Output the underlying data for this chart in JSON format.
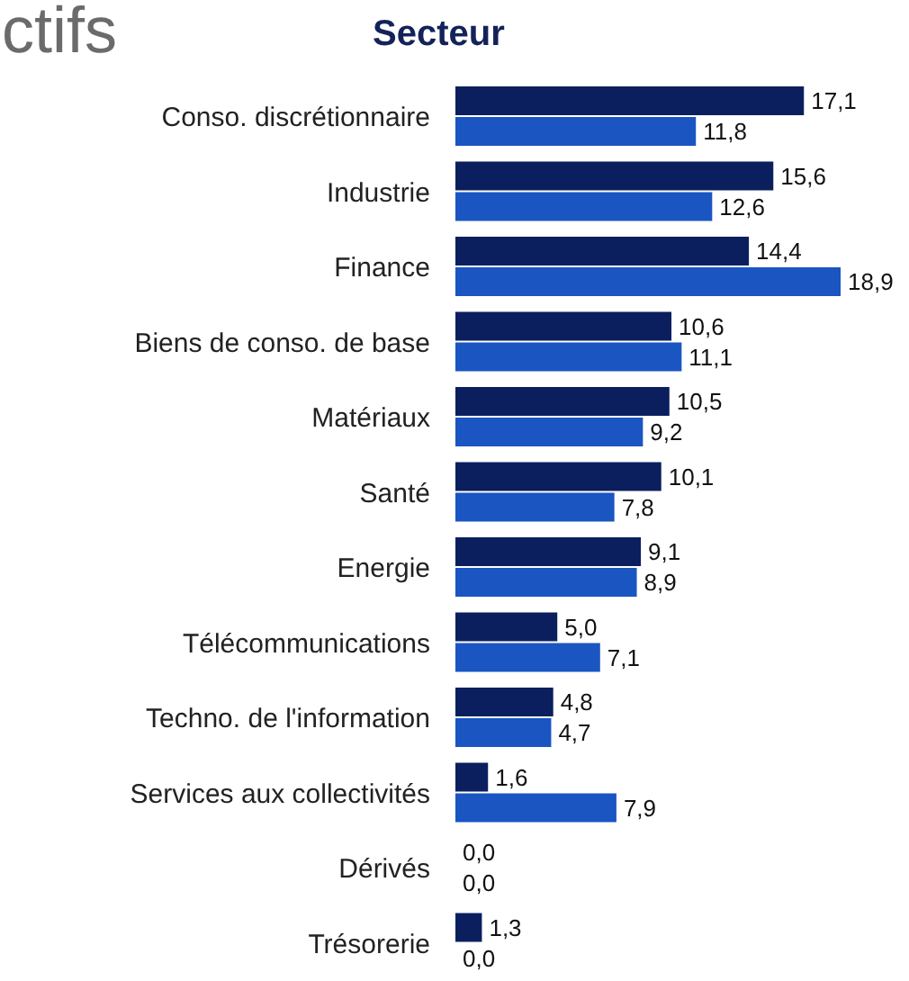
{
  "chart_data": {
    "type": "bar",
    "orientation": "horizontal",
    "title": "Secteur",
    "annotations": [
      "ctifs"
    ],
    "categories": [
      "Conso. discrétionnaire",
      "Industrie",
      "Finance",
      "Biens de conso. de base",
      "Matériaux",
      "Santé",
      "Energie",
      "Télécommunications",
      "Techno. de l'information",
      "Services aux collectivités",
      "Dérivés",
      "Trésorerie"
    ],
    "series": [
      {
        "color": "#0b1f5e",
        "values": [
          17.1,
          15.6,
          14.4,
          10.6,
          10.5,
          10.1,
          9.1,
          5.0,
          4.8,
          1.6,
          0.0,
          1.3
        ],
        "value_labels": [
          "17,1",
          "15,6",
          "14,4",
          "10,6",
          "10,5",
          "10,1",
          "9,1",
          "5,0",
          "4,8",
          "1,6",
          "0,0",
          "1,3"
        ]
      },
      {
        "color": "#1a55c2",
        "values": [
          11.8,
          12.6,
          18.9,
          11.1,
          9.2,
          7.8,
          8.9,
          7.1,
          4.7,
          7.9,
          0.0,
          0.0
        ],
        "value_labels": [
          "11,8",
          "12,6",
          "18,9",
          "11,1",
          "9,2",
          "7,8",
          "8,9",
          "7,1",
          "4,7",
          "7,9",
          "0,0",
          "0,0"
        ]
      }
    ],
    "grid": false,
    "legend": false
  }
}
